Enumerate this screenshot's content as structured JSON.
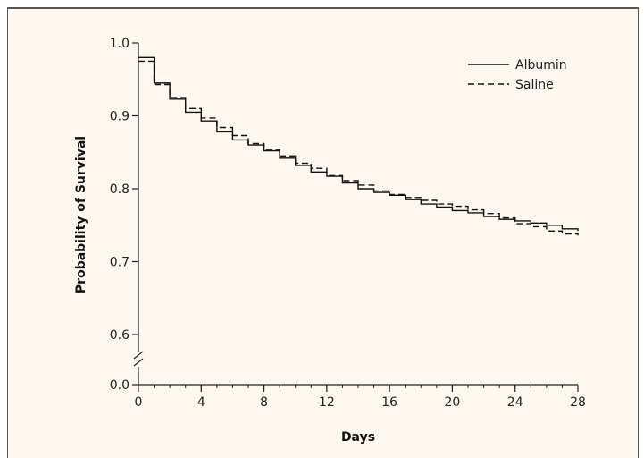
{
  "chart_data": {
    "type": "line",
    "subtype": "step (Kaplan-Meier survival curves)",
    "title": "",
    "xlabel": "Days",
    "ylabel": "Probability of Survival",
    "xlim": [
      0,
      28
    ],
    "ylim": [
      0.55,
      1.0
    ],
    "y_axis_break": {
      "lower_tick": 0.0,
      "note": "axis broken between 0.0 and 0.6"
    },
    "x_ticks": [
      "0",
      "4",
      "8",
      "12",
      "16",
      "20",
      "24",
      "28"
    ],
    "y_ticks": [
      "0.0",
      "0.6",
      "0.7",
      "0.8",
      "0.9",
      "1.0"
    ],
    "grid": false,
    "legend_position": "top-right",
    "series": [
      {
        "name": "Albumin",
        "line_style": "solid",
        "x": [
          0,
          1,
          2,
          3,
          4,
          5,
          6,
          7,
          8,
          9,
          10,
          11,
          12,
          13,
          14,
          15,
          16,
          17,
          18,
          19,
          20,
          21,
          22,
          23,
          24,
          25,
          26,
          27,
          28
        ],
        "y": [
          0.98,
          0.945,
          0.923,
          0.905,
          0.893,
          0.878,
          0.867,
          0.86,
          0.852,
          0.842,
          0.832,
          0.823,
          0.817,
          0.808,
          0.8,
          0.795,
          0.791,
          0.785,
          0.779,
          0.775,
          0.77,
          0.767,
          0.762,
          0.758,
          0.756,
          0.753,
          0.75,
          0.745,
          0.742
        ]
      },
      {
        "name": "Saline",
        "line_style": "dashed",
        "x": [
          0,
          1,
          2,
          3,
          4,
          5,
          6,
          7,
          8,
          9,
          10,
          11,
          12,
          13,
          14,
          15,
          16,
          17,
          18,
          19,
          20,
          21,
          22,
          23,
          24,
          25,
          26,
          27,
          28
        ],
        "y": [
          0.975,
          0.943,
          0.925,
          0.91,
          0.897,
          0.884,
          0.873,
          0.862,
          0.853,
          0.845,
          0.835,
          0.828,
          0.818,
          0.811,
          0.805,
          0.797,
          0.792,
          0.788,
          0.784,
          0.779,
          0.776,
          0.771,
          0.766,
          0.76,
          0.752,
          0.748,
          0.742,
          0.738,
          0.736
        ]
      }
    ]
  }
}
